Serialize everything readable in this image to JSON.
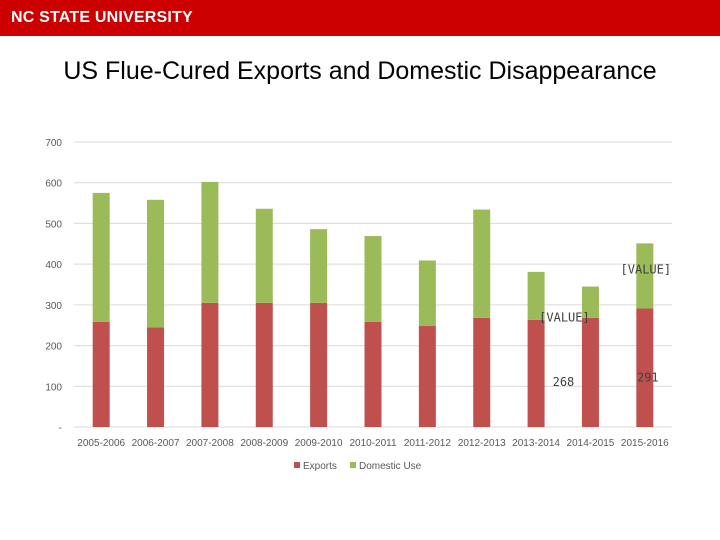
{
  "header": {
    "logo": "NC STATE UNIVERSITY",
    "brand_color": "#cc0000"
  },
  "chart_data": {
    "type": "bar",
    "stacked": true,
    "title": "US Flue-Cured Exports and Domestic Disappearance",
    "categories": [
      "2005-2006",
      "2006-2007",
      "2007-2008",
      "2008-2009",
      "2009-2010",
      "2010-2011",
      "2011-2012",
      "2012-2013",
      "2013-2014",
      "2014-2015",
      "2015-2016"
    ],
    "series": [
      {
        "name": "Exports",
        "color": "#c0504d",
        "values": [
          258,
          245,
          305,
          305,
          305,
          258,
          248,
          268,
          263,
          268,
          291
        ]
      },
      {
        "name": "Domestic Use",
        "color": "#9bbb59",
        "values": [
          317,
          313,
          297,
          231,
          181,
          211,
          161,
          266,
          118,
          77,
          160
        ]
      }
    ],
    "y_ticks": [
      "-",
      "100",
      "200",
      "300",
      "400",
      "500",
      "600",
      "700"
    ],
    "ylim": [
      0,
      700
    ],
    "grid": true,
    "legend_position": "bottom",
    "data_labels": [
      {
        "series": 0,
        "index": 9,
        "text": "268"
      },
      {
        "series": 0,
        "index": 10,
        "text": "291"
      },
      {
        "series": 1,
        "index": 9,
        "text": "[VALUE]"
      },
      {
        "series": 1,
        "index": 10,
        "text": "[VALUE]"
      }
    ]
  }
}
